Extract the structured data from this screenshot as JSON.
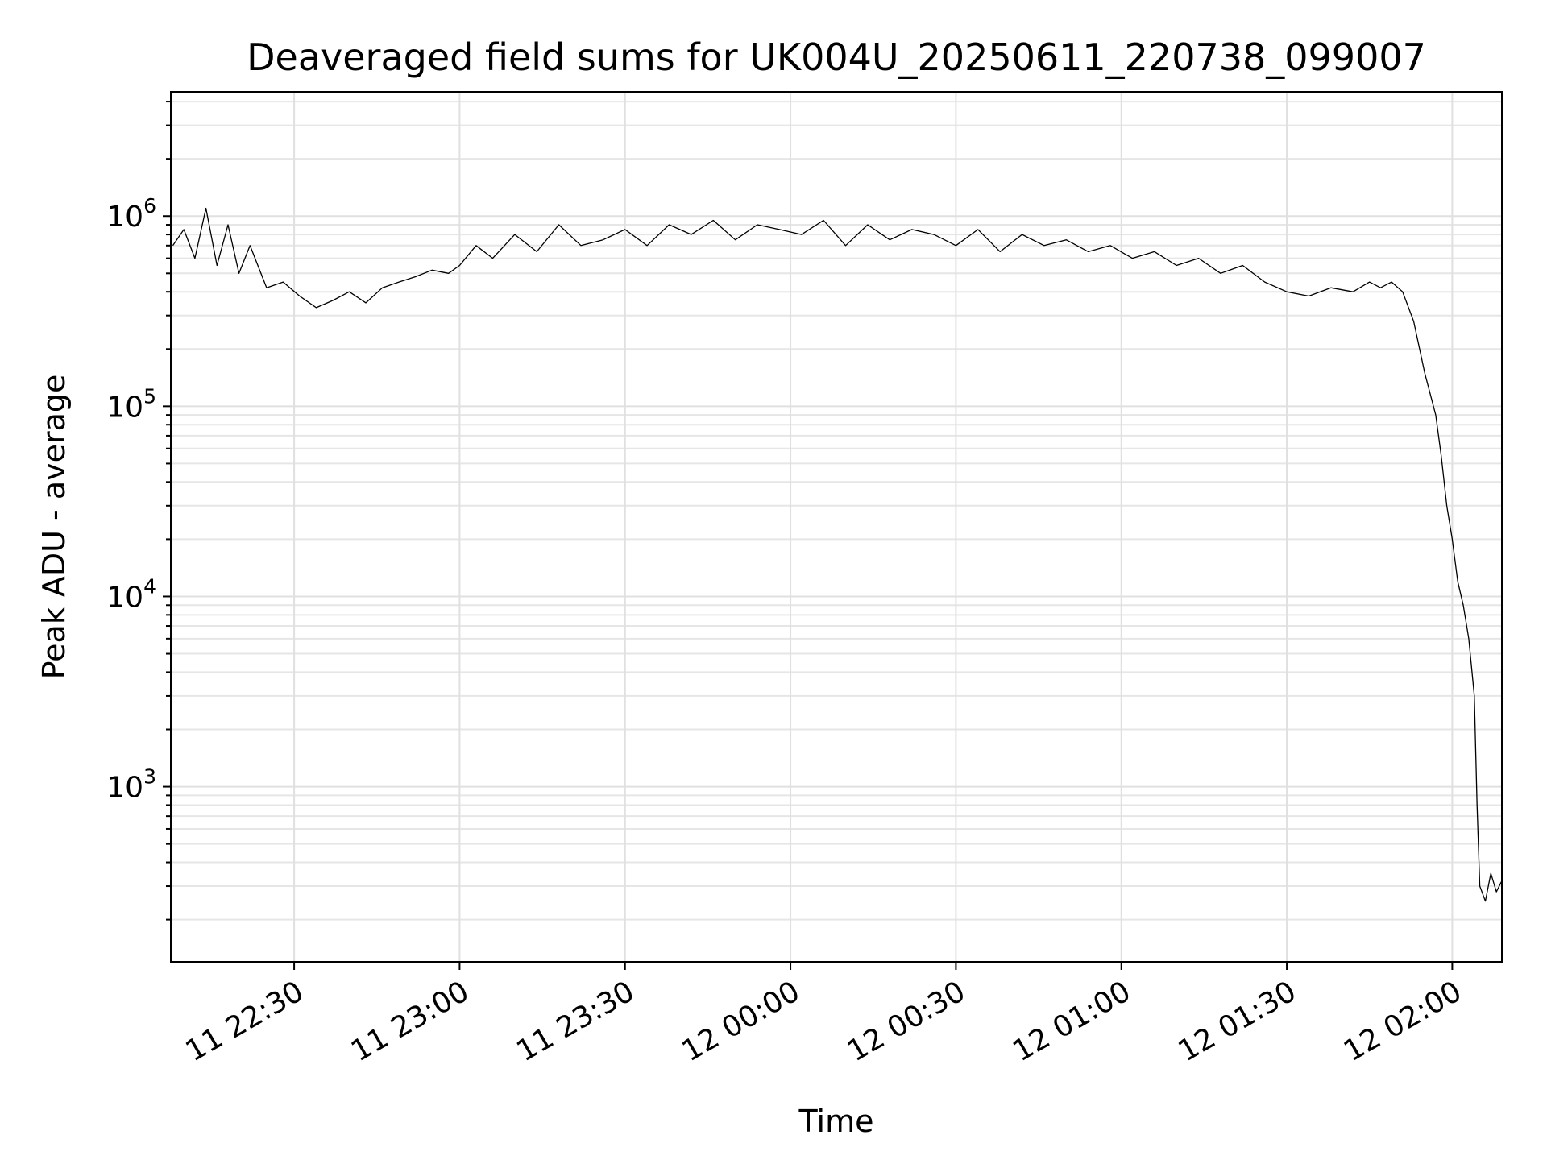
{
  "chart_data": {
    "type": "line",
    "title": "Deaveraged field sums for UK004U_20250611_220738_099007",
    "xlabel": "Time",
    "ylabel": "Peak ADU - average",
    "yscale": "log",
    "grid": true,
    "xlim": [
      "2025-06-11 22:07:38",
      "2025-06-12 02:09:00"
    ],
    "ylim": [
      120,
      4500000
    ],
    "x_tick_labels": [
      "11 22:30",
      "11 23:00",
      "11 23:30",
      "12 00:00",
      "12 00:30",
      "12 01:00",
      "12 01:30",
      "12 02:00"
    ],
    "y_tick_labels": [
      {
        "base": "10",
        "exp": "3"
      },
      {
        "base": "10",
        "exp": "4"
      },
      {
        "base": "10",
        "exp": "5"
      },
      {
        "base": "10",
        "exp": "6"
      }
    ],
    "series": [
      {
        "color": "#000000",
        "x": [
          "2025-06-11 22:08",
          "2025-06-11 22:10",
          "2025-06-11 22:12",
          "2025-06-11 22:14",
          "2025-06-11 22:16",
          "2025-06-11 22:18",
          "2025-06-11 22:20",
          "2025-06-11 22:22",
          "2025-06-11 22:25",
          "2025-06-11 22:28",
          "2025-06-11 22:31",
          "2025-06-11 22:34",
          "2025-06-11 22:37",
          "2025-06-11 22:40",
          "2025-06-11 22:43",
          "2025-06-11 22:46",
          "2025-06-11 22:49",
          "2025-06-11 22:52",
          "2025-06-11 22:55",
          "2025-06-11 22:58",
          "2025-06-11 23:00",
          "2025-06-11 23:03",
          "2025-06-11 23:06",
          "2025-06-11 23:10",
          "2025-06-11 23:14",
          "2025-06-11 23:18",
          "2025-06-11 23:22",
          "2025-06-11 23:26",
          "2025-06-11 23:30",
          "2025-06-11 23:34",
          "2025-06-11 23:38",
          "2025-06-11 23:42",
          "2025-06-11 23:46",
          "2025-06-11 23:50",
          "2025-06-11 23:54",
          "2025-06-11 23:58",
          "2025-06-12 00:02",
          "2025-06-12 00:06",
          "2025-06-12 00:10",
          "2025-06-12 00:14",
          "2025-06-12 00:18",
          "2025-06-12 00:22",
          "2025-06-12 00:26",
          "2025-06-12 00:30",
          "2025-06-12 00:34",
          "2025-06-12 00:38",
          "2025-06-12 00:42",
          "2025-06-12 00:46",
          "2025-06-12 00:50",
          "2025-06-12 00:54",
          "2025-06-12 00:58",
          "2025-06-12 01:02",
          "2025-06-12 01:06",
          "2025-06-12 01:10",
          "2025-06-12 01:14",
          "2025-06-12 01:18",
          "2025-06-12 01:22",
          "2025-06-12 01:26",
          "2025-06-12 01:30",
          "2025-06-12 01:34",
          "2025-06-12 01:38",
          "2025-06-12 01:42",
          "2025-06-12 01:45",
          "2025-06-12 01:47",
          "2025-06-12 01:49",
          "2025-06-12 01:51",
          "2025-06-12 01:53",
          "2025-06-12 01:55",
          "2025-06-12 01:57",
          "2025-06-12 01:58",
          "2025-06-12 01:59",
          "2025-06-12 02:00",
          "2025-06-12 02:01",
          "2025-06-12 02:02",
          "2025-06-12 02:03",
          "2025-06-12 02:04",
          "2025-06-12 02:04:30",
          "2025-06-12 02:05",
          "2025-06-12 02:06",
          "2025-06-12 02:07",
          "2025-06-12 02:08",
          "2025-06-12 02:09"
        ],
        "y": [
          700000,
          850000,
          600000,
          1100000,
          550000,
          900000,
          500000,
          700000,
          420000,
          450000,
          380000,
          330000,
          360000,
          400000,
          350000,
          420000,
          450000,
          480000,
          520000,
          500000,
          550000,
          700000,
          600000,
          800000,
          650000,
          900000,
          700000,
          750000,
          850000,
          700000,
          900000,
          800000,
          950000,
          750000,
          900000,
          850000,
          800000,
          950000,
          700000,
          900000,
          750000,
          850000,
          800000,
          700000,
          850000,
          650000,
          800000,
          700000,
          750000,
          650000,
          700000,
          600000,
          650000,
          550000,
          600000,
          500000,
          550000,
          450000,
          400000,
          380000,
          420000,
          400000,
          450000,
          420000,
          450000,
          400000,
          280000,
          150000,
          90000,
          55000,
          30000,
          20000,
          12000,
          9000,
          6000,
          3000,
          800,
          300,
          250,
          350,
          280,
          320
        ]
      }
    ]
  }
}
